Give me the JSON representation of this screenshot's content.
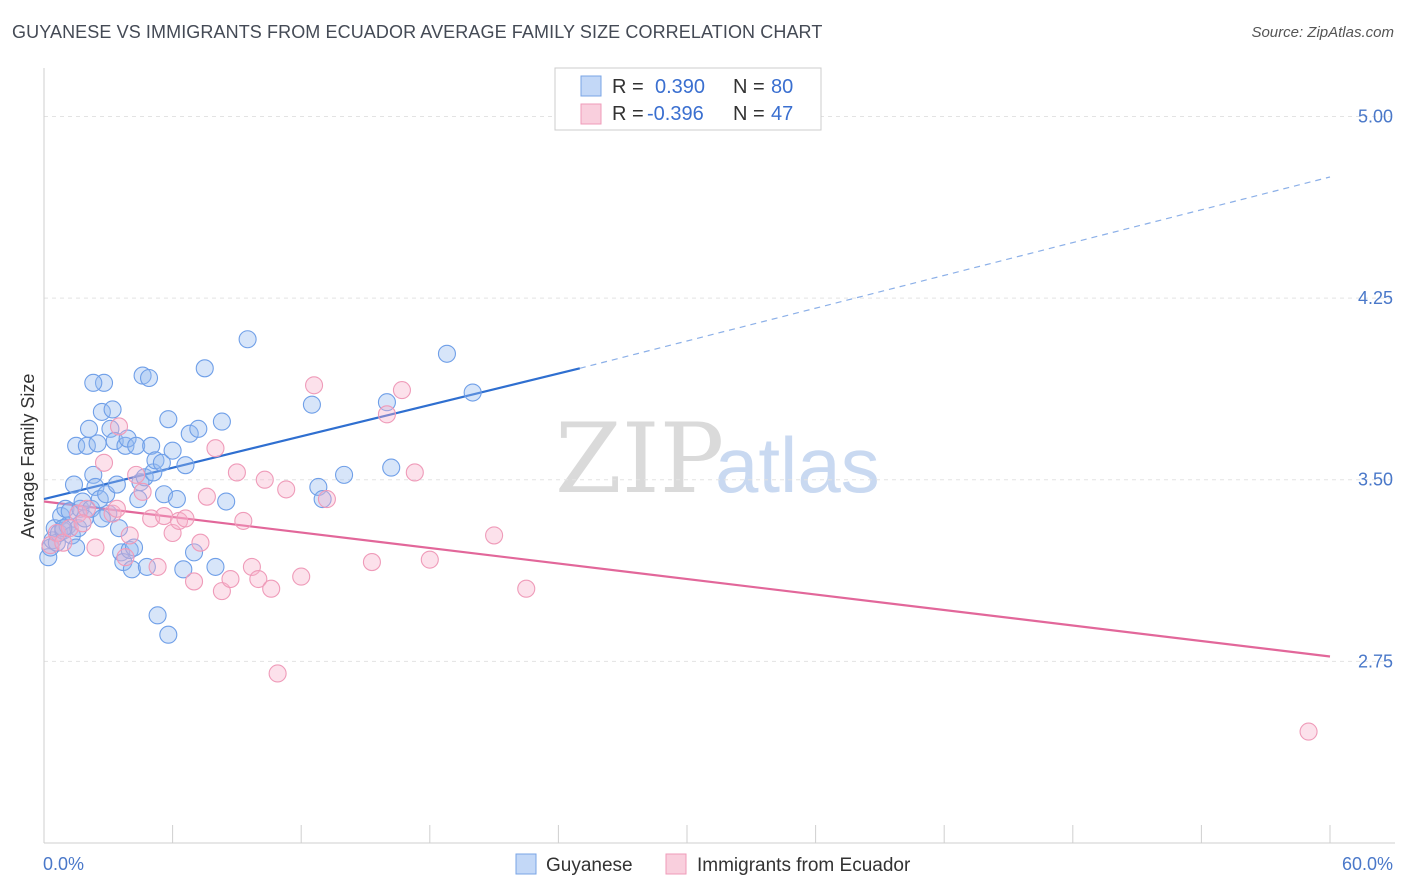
{
  "header": {
    "title": "GUYANESE VS IMMIGRANTS FROM ECUADOR AVERAGE FAMILY SIZE CORRELATION CHART",
    "source": "Source: ZipAtlas.com"
  },
  "watermark": {
    "zip": "ZIP",
    "atlas": "atlas"
  },
  "legend": {
    "rows": [
      {
        "r_label": "R =",
        "r_value": "0.390",
        "n_label": "N =",
        "n_value": "80",
        "color": "#8db4f0"
      },
      {
        "r_label": "R =",
        "r_value": "-0.396",
        "n_label": "N =",
        "n_value": "47",
        "color": "#f4a8c3"
      }
    ]
  },
  "chart_data": {
    "type": "scatter",
    "title": "GUYANESE VS IMMIGRANTS FROM ECUADOR AVERAGE FAMILY SIZE CORRELATION CHART",
    "ylabel": "Average Family Size",
    "xlabel": "",
    "xlim": [
      0,
      60
    ],
    "ylim": [
      2.0,
      5.2
    ],
    "x_tick_labels": [
      "0.0%",
      "60.0%"
    ],
    "y_ticks": [
      2.75,
      3.5,
      4.25,
      5.0
    ],
    "y_tick_labels": [
      "2.75",
      "3.50",
      "4.25",
      "5.00"
    ],
    "grid": true,
    "series": [
      {
        "name": "Guyanese",
        "color": "#6f9fe8",
        "trend": {
          "x": [
            0,
            25
          ],
          "y": [
            3.42,
            3.96
          ],
          "dash_to": [
            60,
            4.75
          ]
        },
        "points": [
          [
            0.2,
            3.18
          ],
          [
            0.3,
            3.22
          ],
          [
            0.4,
            3.25
          ],
          [
            0.5,
            3.3
          ],
          [
            0.6,
            3.24
          ],
          [
            0.7,
            3.28
          ],
          [
            0.8,
            3.35
          ],
          [
            0.9,
            3.29
          ],
          [
            1.0,
            3.38
          ],
          [
            1.1,
            3.31
          ],
          [
            1.2,
            3.37
          ],
          [
            1.3,
            3.27
          ],
          [
            1.4,
            3.48
          ],
          [
            1.5,
            3.64
          ],
          [
            1.6,
            3.3
          ],
          [
            1.7,
            3.38
          ],
          [
            1.8,
            3.41
          ],
          [
            1.9,
            3.34
          ],
          [
            2.0,
            3.64
          ],
          [
            2.1,
            3.71
          ],
          [
            2.2,
            3.38
          ],
          [
            2.3,
            3.52
          ],
          [
            2.4,
            3.47
          ],
          [
            2.5,
            3.65
          ],
          [
            2.6,
            3.42
          ],
          [
            2.7,
            3.78
          ],
          [
            2.8,
            3.9
          ],
          [
            2.9,
            3.44
          ],
          [
            3.0,
            3.36
          ],
          [
            3.1,
            3.71
          ],
          [
            3.2,
            3.79
          ],
          [
            3.3,
            3.66
          ],
          [
            3.4,
            3.48
          ],
          [
            3.5,
            3.3
          ],
          [
            3.6,
            3.2
          ],
          [
            3.7,
            3.16
          ],
          [
            3.8,
            3.64
          ],
          [
            3.9,
            3.67
          ],
          [
            4.0,
            3.21
          ],
          [
            4.1,
            3.13
          ],
          [
            4.2,
            3.22
          ],
          [
            4.3,
            3.64
          ],
          [
            4.4,
            3.42
          ],
          [
            4.5,
            3.49
          ],
          [
            4.6,
            3.93
          ],
          [
            4.7,
            3.51
          ],
          [
            4.8,
            3.14
          ],
          [
            4.9,
            3.92
          ],
          [
            5.0,
            3.64
          ],
          [
            5.1,
            3.53
          ],
          [
            5.2,
            3.58
          ],
          [
            5.5,
            3.57
          ],
          [
            5.6,
            3.44
          ],
          [
            5.8,
            3.75
          ],
          [
            6.0,
            3.62
          ],
          [
            6.2,
            3.42
          ],
          [
            6.5,
            3.13
          ],
          [
            6.6,
            3.56
          ],
          [
            6.8,
            3.69
          ],
          [
            7.0,
            3.2
          ],
          [
            7.2,
            3.71
          ],
          [
            7.5,
            3.96
          ],
          [
            8.0,
            3.14
          ],
          [
            8.3,
            3.74
          ],
          [
            8.5,
            3.41
          ],
          [
            9.5,
            4.08
          ],
          [
            12.5,
            3.81
          ],
          [
            12.8,
            3.47
          ],
          [
            14.0,
            3.52
          ],
          [
            16.0,
            3.82
          ],
          [
            16.2,
            3.55
          ],
          [
            18.8,
            4.02
          ],
          [
            20.0,
            3.86
          ],
          [
            2.3,
            3.9
          ],
          [
            5.3,
            2.94
          ],
          [
            5.8,
            2.86
          ],
          [
            1.5,
            3.22
          ],
          [
            0.9,
            3.3
          ],
          [
            2.7,
            3.34
          ],
          [
            13.0,
            3.42
          ]
        ]
      },
      {
        "name": "Immigrants from Ecuador",
        "color": "#f29bbd",
        "trend": {
          "x": [
            0,
            60
          ],
          "y": [
            3.41,
            2.77
          ]
        },
        "points": [
          [
            0.3,
            3.23
          ],
          [
            0.6,
            3.28
          ],
          [
            0.9,
            3.24
          ],
          [
            1.2,
            3.3
          ],
          [
            1.6,
            3.36
          ],
          [
            2.0,
            3.38
          ],
          [
            2.4,
            3.22
          ],
          [
            2.8,
            3.57
          ],
          [
            3.2,
            3.36
          ],
          [
            3.5,
            3.72
          ],
          [
            3.8,
            3.18
          ],
          [
            4.0,
            3.27
          ],
          [
            4.3,
            3.52
          ],
          [
            4.6,
            3.45
          ],
          [
            5.0,
            3.34
          ],
          [
            5.3,
            3.14
          ],
          [
            5.6,
            3.35
          ],
          [
            6.0,
            3.28
          ],
          [
            6.3,
            3.33
          ],
          [
            6.6,
            3.34
          ],
          [
            7.0,
            3.08
          ],
          [
            7.3,
            3.24
          ],
          [
            7.6,
            3.43
          ],
          [
            8.0,
            3.63
          ],
          [
            8.3,
            3.04
          ],
          [
            8.7,
            3.09
          ],
          [
            9.0,
            3.53
          ],
          [
            9.3,
            3.33
          ],
          [
            9.7,
            3.14
          ],
          [
            10.0,
            3.09
          ],
          [
            10.3,
            3.5
          ],
          [
            10.6,
            3.05
          ],
          [
            10.9,
            2.7
          ],
          [
            11.3,
            3.46
          ],
          [
            12.0,
            3.1
          ],
          [
            12.6,
            3.89
          ],
          [
            13.2,
            3.42
          ],
          [
            15.3,
            3.16
          ],
          [
            16.0,
            3.77
          ],
          [
            16.7,
            3.87
          ],
          [
            17.3,
            3.53
          ],
          [
            18.0,
            3.17
          ],
          [
            21.0,
            3.27
          ],
          [
            22.5,
            3.05
          ],
          [
            59.0,
            2.46
          ],
          [
            3.4,
            3.38
          ],
          [
            1.8,
            3.32
          ]
        ]
      }
    ]
  }
}
